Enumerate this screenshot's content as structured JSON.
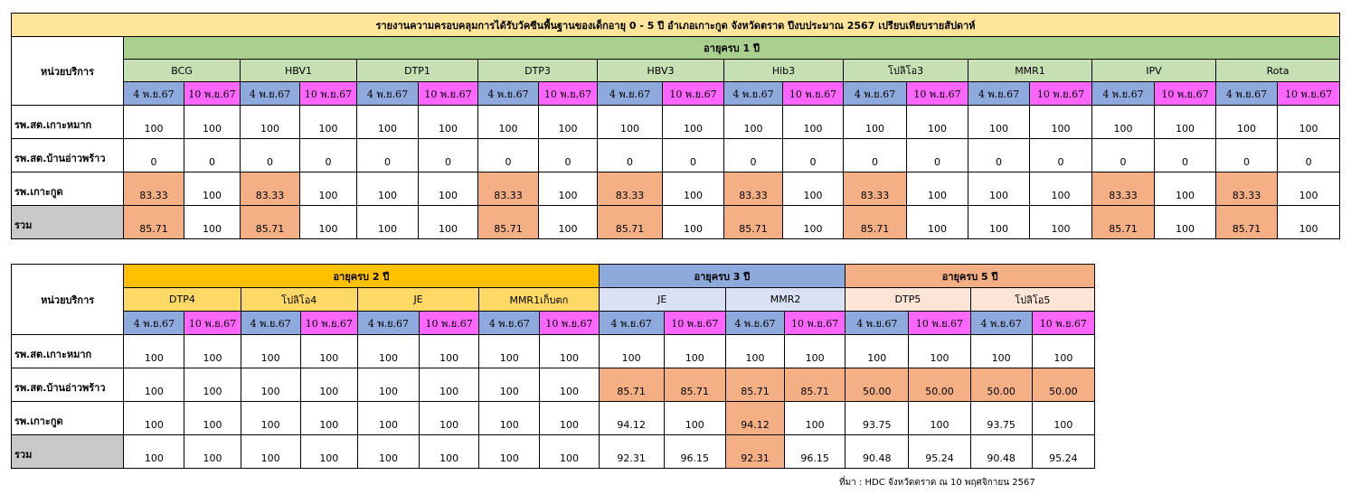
{
  "table1": {
    "title": "รายงานความครอบคลุมการได้รับวัคซีนพื้นฐานของเด็กอายุ 0 - 5 ปี อำเภอเกาะกูด จังหวัดตราด  ปีงบประมาณ 2567 เปรียบเทียบรายสัปดาห์",
    "service_header": "หน่วยบริการ",
    "age_group": "อายุครบ 1 ปี",
    "vaccines": [
      "BCG",
      "HBV1",
      "DTP1",
      "DTP3",
      "HBV3",
      "Hib3",
      "โปลิโอ3",
      "MMR1",
      "IPV",
      "Rota"
    ],
    "date1": "4 พ.ย.67",
    "date2": "10 พ.ย.67",
    "rows": [
      {
        "unit": "รพ.สต.เกาะหมาก",
        "values": [
          "100",
          "100",
          "100",
          "100",
          "100",
          "100",
          "100",
          "100",
          "100",
          "100",
          "100",
          "100",
          "100",
          "100",
          "100",
          "100",
          "100",
          "100",
          "100",
          "100"
        ]
      },
      {
        "unit": "รพ.สต.บ้านอ่าวพร้าว",
        "values": [
          "0",
          "0",
          "0",
          "0",
          "0",
          "0",
          "0",
          "0",
          "0",
          "0",
          "0",
          "0",
          "0",
          "0",
          "0",
          "0",
          "0",
          "0",
          "0",
          "0"
        ]
      },
      {
        "unit": "รพ.เกาะกูด",
        "values": [
          "83.33",
          "100",
          "83.33",
          "100",
          "100",
          "100",
          "83.33",
          "100",
          "83.33",
          "100",
          "83.33",
          "100",
          "83.33",
          "100",
          "100",
          "100",
          "83.33",
          "100",
          "83.33",
          "100"
        ]
      },
      {
        "unit": "รวม",
        "values": [
          "85.71",
          "100",
          "85.71",
          "100",
          "100",
          "100",
          "85.71",
          "100",
          "85.71",
          "100",
          "85.71",
          "100",
          "85.71",
          "100",
          "100",
          "100",
          "85.71",
          "100",
          "85.71",
          "100"
        ]
      }
    ]
  },
  "table2": {
    "service_header": "หน่วยบริการ",
    "groups": [
      {
        "label": "อายุครบ 2 ปี",
        "vaccines": [
          "DTP4",
          "โปลิโอ4",
          "JE",
          "MMR1เก็บตก"
        ]
      },
      {
        "label": "อายุครบ 3 ปี",
        "vaccines": [
          "JE",
          "MMR2"
        ]
      },
      {
        "label": "อายุครบ 5 ปี",
        "vaccines": [
          "DTP5",
          "โปลิโอ5"
        ]
      }
    ],
    "date1": "4 พ.ย.67",
    "date2": "10 พ.ย.67",
    "rows": [
      {
        "unit": "รพ.สต.เกาะหมาก",
        "values": [
          "100",
          "100",
          "100",
          "100",
          "100",
          "100",
          "100",
          "100",
          "100",
          "100",
          "100",
          "100",
          "100",
          "100",
          "100",
          "100"
        ]
      },
      {
        "unit": "รพ.สต.บ้านอ่าวพร้าว",
        "values": [
          "100",
          "100",
          "100",
          "100",
          "100",
          "100",
          "100",
          "100",
          "85.71",
          "85.71",
          "85.71",
          "85.71",
          "50.00",
          "50.00",
          "50.00",
          "50.00"
        ]
      },
      {
        "unit": "รพ.เกาะกูด",
        "values": [
          "100",
          "100",
          "100",
          "100",
          "100",
          "100",
          "100",
          "100",
          "94.12",
          "100",
          "94.12",
          "100",
          "93.75",
          "100",
          "93.75",
          "100"
        ]
      },
      {
        "unit": "รวม",
        "values": [
          "100",
          "100",
          "100",
          "100",
          "100",
          "100",
          "100",
          "100",
          "92.31",
          "96.15",
          "92.31",
          "96.15",
          "90.48",
          "95.24",
          "90.48",
          "95.24"
        ]
      }
    ]
  },
  "source_note": "ที่มา : HDC จังหวัดตราด ณ 10 พฤศจิกายน  2567",
  "colors": {
    "title_bg": "#ffe599",
    "age1_bg": "#a9d08e",
    "age2_bg": "#ffc000",
    "age3_bg": "#8ea9db",
    "age5_bg": "#f4b084",
    "date1_bg": "#8ea9db",
    "date2_bg": "#ff66ff",
    "highlight_bg": "#f4b084",
    "total_label_bg": "#c9c9c9"
  }
}
